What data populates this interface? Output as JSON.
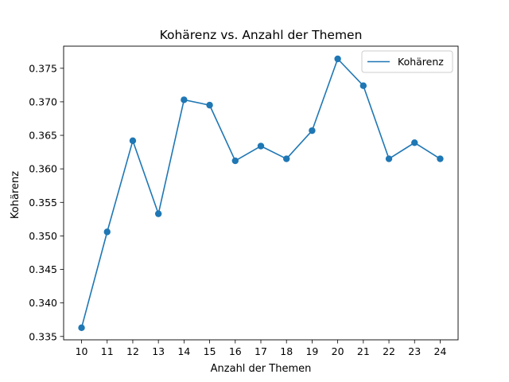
{
  "chart_data": {
    "type": "line",
    "title": "Kohärenz vs. Anzahl der Themen",
    "xlabel": "Anzahl der Themen",
    "ylabel": "Kohärenz",
    "x": [
      10,
      11,
      12,
      13,
      14,
      15,
      16,
      17,
      18,
      19,
      20,
      21,
      22,
      23,
      24
    ],
    "x_ticks": [
      "10",
      "11",
      "12",
      "13",
      "14",
      "15",
      "16",
      "17",
      "18",
      "19",
      "20",
      "21",
      "22",
      "23",
      "24"
    ],
    "series": [
      {
        "name": "Kohärenz",
        "color": "#1f77b4",
        "marker": "circle",
        "values": [
          0.3363,
          0.3506,
          0.3642,
          0.3533,
          0.3703,
          0.3695,
          0.3612,
          0.3634,
          0.3615,
          0.3657,
          0.3764,
          0.3724,
          0.3615,
          0.3639,
          0.3615
        ]
      }
    ],
    "xlim": [
      9.3,
      24.7
    ],
    "ylim": [
      0.3345,
      0.3783
    ],
    "y_ticks": [
      "0.335",
      "0.340",
      "0.345",
      "0.350",
      "0.355",
      "0.360",
      "0.365",
      "0.370",
      "0.375"
    ],
    "legend": {
      "position": "top-right",
      "entries": [
        "Kohärenz"
      ]
    },
    "grid": false
  }
}
